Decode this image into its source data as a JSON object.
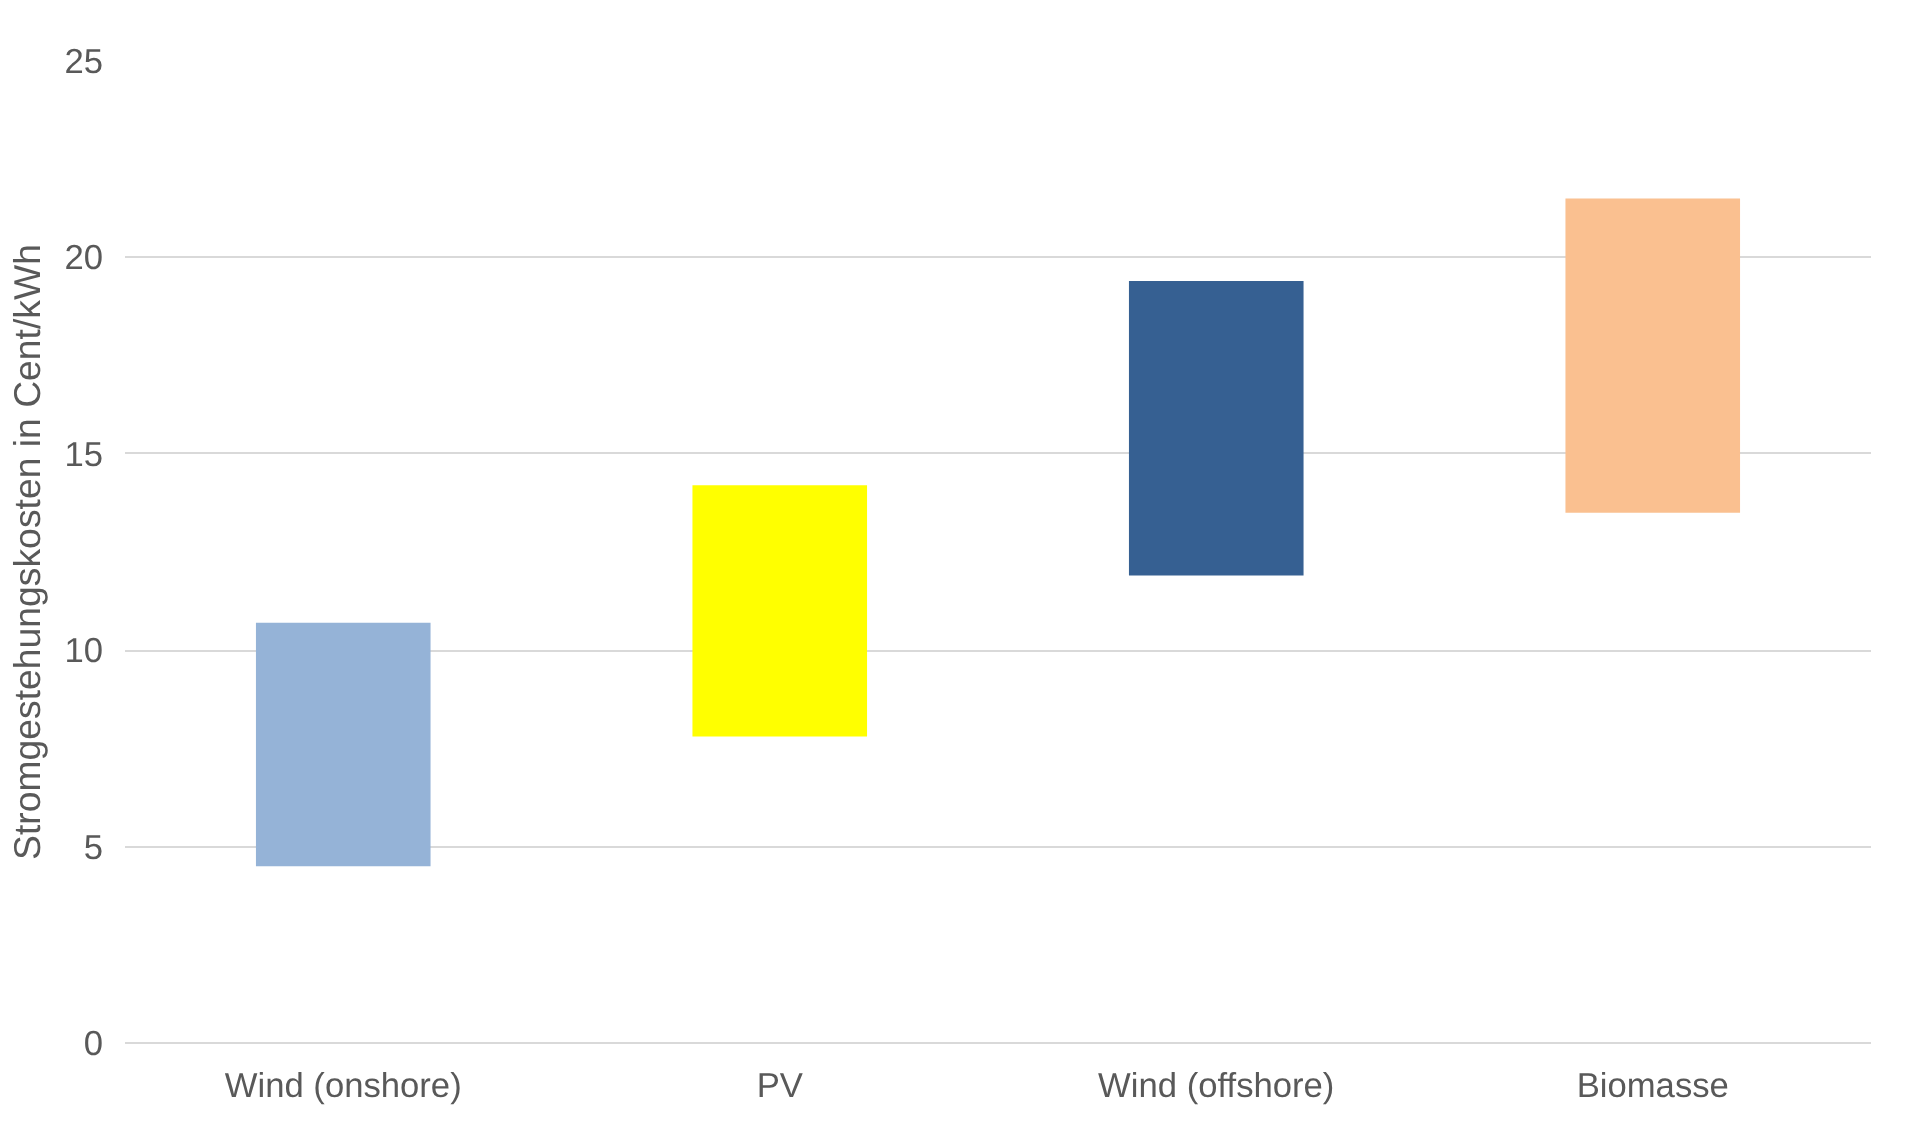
{
  "chart_data": {
    "type": "bar",
    "ylabel": "Stromgestehungskosten in Cent/kWh",
    "categories": [
      "Wind (onshore)",
      "PV",
      "Wind (offshore)",
      "Biomasse"
    ],
    "base": [
      4.5,
      7.8,
      11.9,
      13.5
    ],
    "values": [
      6.2,
      6.4,
      7.5,
      8.0
    ],
    "colors": [
      "#95b3d7",
      "#ffff00",
      "#366092",
      "#fac090"
    ],
    "ylim": [
      0,
      25
    ],
    "yticks": [
      0,
      5,
      10,
      15,
      20,
      25
    ],
    "grid": "y"
  }
}
